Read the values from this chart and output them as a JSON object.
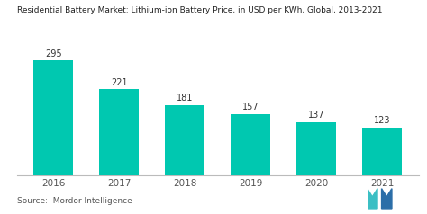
{
  "title": "Residential Battery Market: Lithium-ion Battery Price, in USD per KWh, Global, 2013-2021",
  "categories": [
    "2016",
    "2017",
    "2018",
    "2019",
    "2020",
    "2021"
  ],
  "values": [
    295,
    221,
    181,
    157,
    137,
    123
  ],
  "bar_color": "#00C8B0",
  "background_color": "#ffffff",
  "title_fontsize": 6.5,
  "label_fontsize": 7.0,
  "tick_fontsize": 7.5,
  "source_text": "Source:  Mordor Intelligence",
  "source_fontsize": 6.5,
  "ylim": [
    0,
    340
  ],
  "bar_width": 0.6,
  "logo_teal": "#3BBFC4",
  "logo_blue": "#2B6EA8"
}
